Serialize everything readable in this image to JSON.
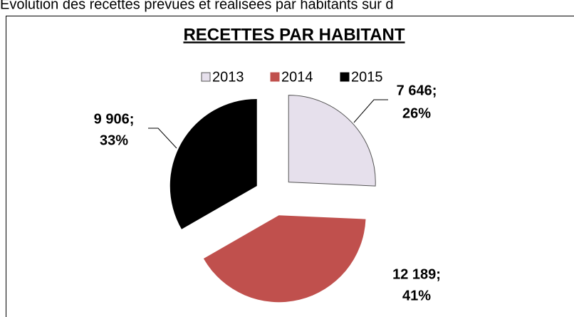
{
  "caption": "Évolution des recettes prévues et réalisées par habitants sur d",
  "chart_data": {
    "type": "pie",
    "title": "RECETTES PAR HABITANT",
    "categories": [
      "2013",
      "2014",
      "2015"
    ],
    "values": [
      7646,
      12189,
      9906
    ],
    "value_labels": [
      "7 646;",
      "12 189;",
      "9 906;"
    ],
    "percent_values": [
      26,
      41,
      33
    ],
    "percent_labels": [
      "26%",
      "41%",
      "33%"
    ],
    "colors": [
      "#e6e0ec",
      "#c0504d",
      "#000000"
    ],
    "legend": "top"
  }
}
